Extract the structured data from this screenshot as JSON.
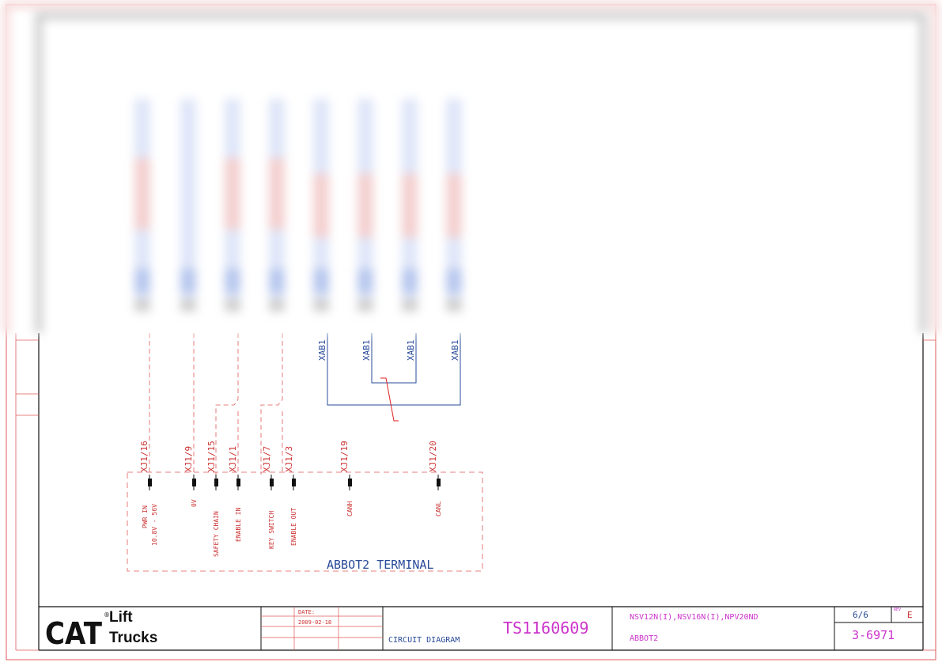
{
  "colors": {
    "frame": "#e05a5a",
    "pin_label": "#cc3333",
    "blue": "#2a4a9a",
    "magenta": "#cc33cc",
    "black": "#111111",
    "blur_blue": "#9fb3e8",
    "blur_red": "#e6a0a0"
  },
  "connectors": [
    {
      "ref": "XJ1/16",
      "label": "PWR IN",
      "label2": "10.8V - 56V"
    },
    {
      "ref": "XJ1/9",
      "label": "0V",
      "label2": ""
    },
    {
      "ref": "XJ1/15",
      "label": "SAFETY CHAIN",
      "label2": ""
    },
    {
      "ref": "XJ1/1",
      "label": "ENABLE IN",
      "label2": ""
    },
    {
      "ref": "XJ1/7",
      "label": "KEY SWITCH",
      "label2": ""
    },
    {
      "ref": "XJ1/3",
      "label": "ENABLE OUT",
      "label2": ""
    },
    {
      "ref": "XJ1/19",
      "label": "CANH",
      "label2": ""
    },
    {
      "ref": "XJ1/20",
      "label": "CANL",
      "label2": ""
    }
  ],
  "xab_labels": [
    "XAB1",
    "XAB1",
    "XAB1",
    "XAB1"
  ],
  "terminal_label": "ABBOT2 TERMINAL",
  "title_block": {
    "logo_main": "CAT",
    "logo_reg": "®",
    "logo_sub1": "Lift",
    "logo_sub2": "Trucks",
    "date_label": "DATE:",
    "date_value": "2009-02-18",
    "doc_type": "CIRCUIT DIAGRAM",
    "doc_number": "TS1160609",
    "models": "NSV12N(I),NSV16N(I),NPV20ND",
    "unit": "ABBOT2",
    "sheet": "6/6",
    "rev_label": "REV",
    "rev_value": "E",
    "drawing_number": "3-6971"
  }
}
